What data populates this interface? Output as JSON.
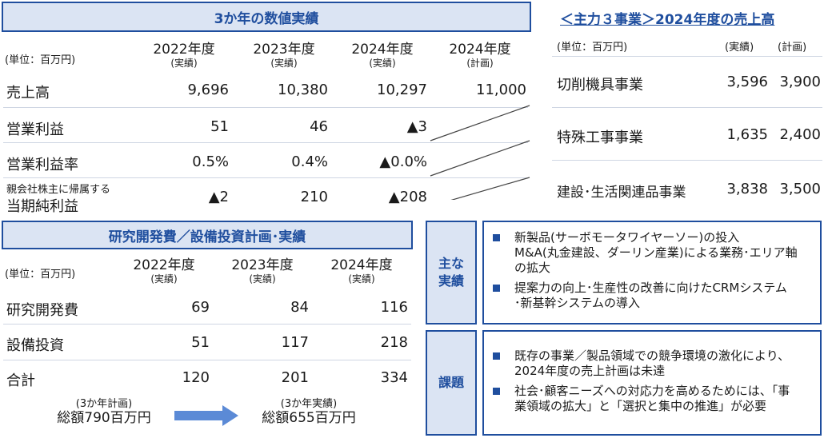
{
  "three_year": {
    "title": "3か年の数値実績",
    "unit": "(単位：百万円)",
    "columns": [
      {
        "year": "2022年度",
        "sub": "(実績)"
      },
      {
        "year": "2023年度",
        "sub": "(実績)"
      },
      {
        "year": "2024年度",
        "sub": "(実績)"
      },
      {
        "year": "2024年度",
        "sub": "(計画)"
      }
    ],
    "rows": [
      {
        "label": "売上高",
        "values": [
          "9,696",
          "10,380",
          "10,297",
          "11,000"
        ]
      },
      {
        "label": "営業利益",
        "values": [
          "51",
          "46",
          "▲3",
          ""
        ]
      },
      {
        "label": "営業利益率",
        "values": [
          "0.5%",
          "0.4%",
          "▲0.0%",
          ""
        ]
      },
      {
        "label_small": "親会社株主に帰属する",
        "label": "当期純利益",
        "values": [
          "▲2",
          "210",
          "▲208",
          ""
        ]
      }
    ]
  },
  "segments": {
    "title": "＜主力３事業＞2024年度の売上高",
    "unit": "(単位：百万円)",
    "col_actual": "(実績)",
    "col_plan": "(計画)",
    "rows": [
      {
        "label": "切削機具事業",
        "actual": "3,596",
        "plan": "3,900"
      },
      {
        "label": "特殊工事事業",
        "actual": "1,635",
        "plan": "2,400"
      },
      {
        "label": "建設･生活関連品事業",
        "actual": "3,838",
        "plan": "3,500"
      }
    ]
  },
  "rd": {
    "title": "研究開発費／設備投資計画･実績",
    "unit": "(単位：百万円)",
    "columns": [
      {
        "year": "2022年度",
        "sub": "(実績)"
      },
      {
        "year": "2023年度",
        "sub": "(実績)"
      },
      {
        "year": "2024年度",
        "sub": "(実績)"
      }
    ],
    "rows": [
      {
        "label": "研究開発費",
        "values": [
          "69",
          "84",
          "116"
        ]
      },
      {
        "label": "設備投資",
        "values": [
          "51",
          "117",
          "218"
        ]
      },
      {
        "label": "合計",
        "values": [
          "120",
          "201",
          "334"
        ]
      }
    ],
    "total_plan": {
      "sub": "(3か年計画)",
      "main": "総額790百万円"
    },
    "total_actual": {
      "sub": "(3か年実績)",
      "main": "総額655百万円"
    }
  },
  "achievements": {
    "label_line1": "主な",
    "label_line2": "実績",
    "bullets": [
      {
        "line1": "新製品(サーボモータワイヤーソー)の投入",
        "line2": "M&A(丸金建設、ダーリン産業)による業務･エリア軸",
        "line3": "の拡大"
      },
      {
        "line1": "提案力の向上･生産性の改善に向けたCRMシステム",
        "line2": "･新基幹システムの導入",
        "line3": ""
      }
    ]
  },
  "issues": {
    "label": "課題",
    "bullets": [
      {
        "line1": "既存の事業／製品領域での競争環境の激化により、",
        "line2": "2024年度の売上計画は未達"
      },
      {
        "line1": "社会･顧客ニーズへの対応力を高めるためには、「事",
        "line2": "業領域の拡大」と「選択と集中の推進」が必要"
      }
    ]
  },
  "colors": {
    "accent": "#1f4e9e",
    "panel": "#dbe4f3",
    "arrow": "#5b8ad6"
  }
}
